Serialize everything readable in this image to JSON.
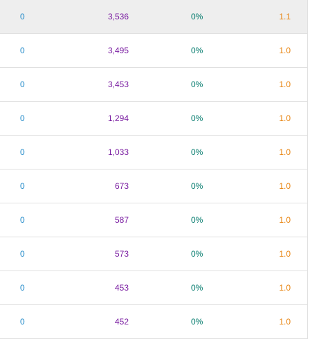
{
  "colors": {
    "clicks": "#1e88c8",
    "impressions": "#7b1fa2",
    "ctr": "#00796b",
    "position": "#e8820c",
    "row_highlight": "#eeeeee",
    "divider": "#e0e0e0"
  },
  "rows": [
    {
      "clicks": "0",
      "impressions": "3,536",
      "ctr": "0%",
      "position": "1.1",
      "highlighted": true
    },
    {
      "clicks": "0",
      "impressions": "3,495",
      "ctr": "0%",
      "position": "1.0",
      "highlighted": false
    },
    {
      "clicks": "0",
      "impressions": "3,453",
      "ctr": "0%",
      "position": "1.0",
      "highlighted": false
    },
    {
      "clicks": "0",
      "impressions": "1,294",
      "ctr": "0%",
      "position": "1.0",
      "highlighted": false
    },
    {
      "clicks": "0",
      "impressions": "1,033",
      "ctr": "0%",
      "position": "1.0",
      "highlighted": false
    },
    {
      "clicks": "0",
      "impressions": "673",
      "ctr": "0%",
      "position": "1.0",
      "highlighted": false
    },
    {
      "clicks": "0",
      "impressions": "587",
      "ctr": "0%",
      "position": "1.0",
      "highlighted": false
    },
    {
      "clicks": "0",
      "impressions": "573",
      "ctr": "0%",
      "position": "1.0",
      "highlighted": false
    },
    {
      "clicks": "0",
      "impressions": "453",
      "ctr": "0%",
      "position": "1.0",
      "highlighted": false
    },
    {
      "clicks": "0",
      "impressions": "452",
      "ctr": "0%",
      "position": "1.0",
      "highlighted": false
    }
  ]
}
